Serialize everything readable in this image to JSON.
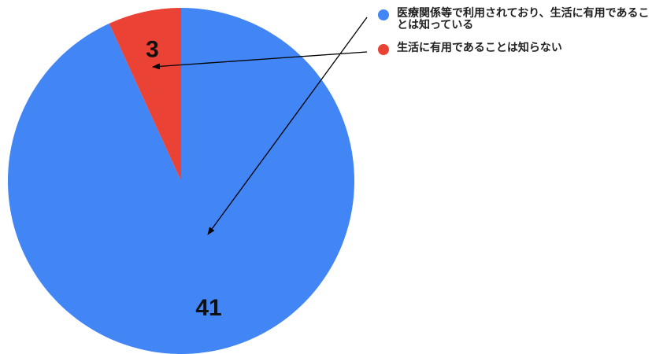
{
  "chart_data": {
    "type": "pie",
    "title": "",
    "slices": [
      {
        "label": "医療関係等で利用されており、生活に有用であることは知っている",
        "value": 41,
        "color": "#4285f4"
      },
      {
        "label": "生活に有用であることは知らない",
        "value": 3,
        "color": "#ea4335"
      }
    ],
    "legend_position": "right",
    "data_labels": [
      "41",
      "3"
    ]
  },
  "legend": {
    "items": [
      {
        "label": "医療関係等で利用されており、生活に有用であることは知っている",
        "color": "#4285f4"
      },
      {
        "label": "生活に有用であることは知らない",
        "color": "#ea4335"
      }
    ]
  }
}
